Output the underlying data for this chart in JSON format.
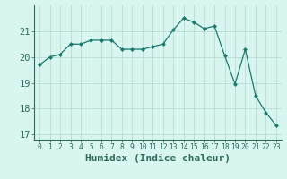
{
  "x": [
    0,
    1,
    2,
    3,
    4,
    5,
    6,
    7,
    8,
    9,
    10,
    11,
    12,
    13,
    14,
    15,
    16,
    17,
    18,
    19,
    20,
    21,
    22,
    23
  ],
  "y": [
    19.7,
    20.0,
    20.1,
    20.5,
    20.5,
    20.65,
    20.65,
    20.65,
    20.3,
    20.3,
    20.3,
    20.4,
    20.5,
    21.05,
    21.5,
    21.35,
    21.1,
    21.2,
    20.05,
    18.95,
    20.3,
    18.5,
    17.85,
    17.35
  ],
  "line_color": "#1a7a6e",
  "marker": "D",
  "marker_size": 2,
  "bg_color": "#d8f5f0",
  "grid_color": "#b8ddd5",
  "xlabel": "Humidex (Indice chaleur)",
  "ylim": [
    16.8,
    22.0
  ],
  "yticks": [
    17,
    18,
    19,
    20,
    21
  ],
  "xticks": [
    0,
    1,
    2,
    3,
    4,
    5,
    6,
    7,
    8,
    9,
    10,
    11,
    12,
    13,
    14,
    15,
    16,
    17,
    18,
    19,
    20,
    21,
    22,
    23
  ],
  "xlabel_fontsize": 8,
  "tick_fontsize": 7.5,
  "axis_color": "#2d6b5a",
  "spine_color": "#2d6b5a"
}
